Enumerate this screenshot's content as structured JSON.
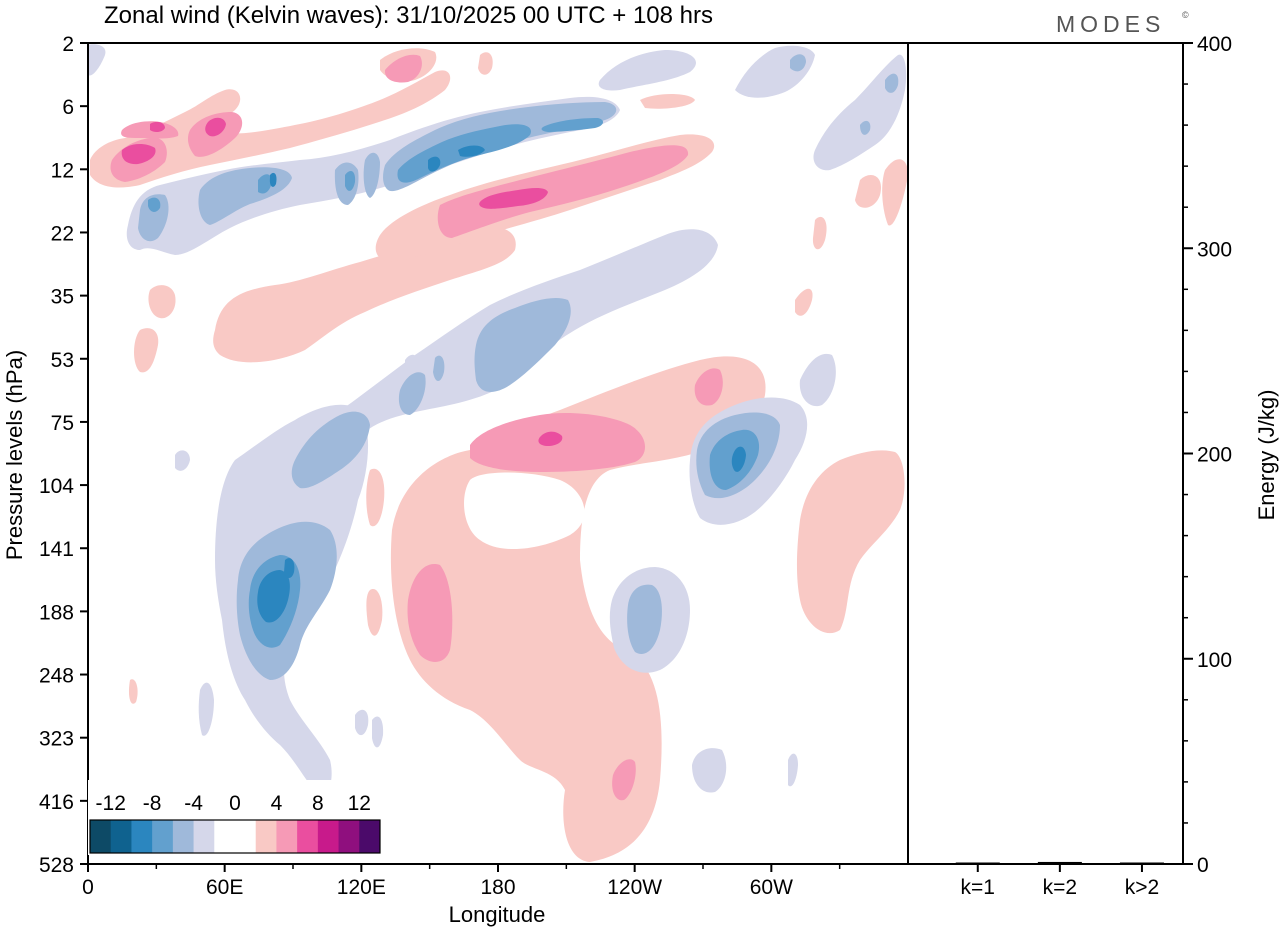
{
  "brand": "MODES",
  "brand_mark": "©",
  "chart_data": [
    {
      "type": "heatmap",
      "title": "Zonal wind (Kelvin waves):  31/10/2025  00 UTC  + 108 hrs",
      "xlabel": "Longitude",
      "ylabel": "Pressure levels (hPa)",
      "x_ticks": [
        "0",
        "60E",
        "120E",
        "180",
        "120W",
        "60W"
      ],
      "x_tick_values": [
        0,
        60,
        120,
        180,
        240,
        300
      ],
      "x_range": [
        0,
        360
      ],
      "y_ticks": [
        "2",
        "6",
        "12",
        "22",
        "35",
        "53",
        "75",
        "104",
        "141",
        "188",
        "248",
        "323",
        "416",
        "528"
      ],
      "y_axis_order": "top-to-bottom",
      "colorbar": {
        "labels": [
          "-12",
          "-8",
          "-4",
          "0",
          "4",
          "8",
          "12"
        ],
        "bins": [
          {
            "range": "<-12",
            "color": "#0d4a66"
          },
          {
            "range": "-12..-10",
            "color": "#0f628f"
          },
          {
            "range": "-10..-8",
            "color": "#2b86bf"
          },
          {
            "range": "-8..-6",
            "color": "#62a0ce"
          },
          {
            "range": "-6..-4",
            "color": "#9fb9da"
          },
          {
            "range": "-4..-2",
            "color": "#d5d7ea"
          },
          {
            "range": "-2..0",
            "color": "#ffffff"
          },
          {
            "range": "0..2",
            "color": "#ffffff"
          },
          {
            "range": "2..4",
            "color": "#f9c9c5"
          },
          {
            "range": "4..6",
            "color": "#f69ab6"
          },
          {
            "range": "6..8",
            "color": "#ea4e9f"
          },
          {
            "range": "8..10",
            "color": "#c81a8b"
          },
          {
            "range": "10..12",
            "color": "#8f0f7e"
          },
          {
            "range": ">12",
            "color": "#4b0a6a"
          }
        ]
      },
      "features": [
        {
          "sign": "negative",
          "peak_value": -10,
          "lon": 72,
          "lat_level_hPa": 175,
          "label": "lower trop negative cell"
        },
        {
          "sign": "negative",
          "peak_value": -10,
          "lon": 280,
          "lat_level_hPa": 100,
          "label": "upper trop negative cell"
        },
        {
          "sign": "negative",
          "peak_value": -10,
          "lon": 150,
          "lat_level_hPa": 12,
          "label": "stratospheric negative band"
        },
        {
          "sign": "positive",
          "peak_value": 6,
          "lon": 140,
          "lat_level_hPa": 180,
          "label": "lower trop positive cell"
        },
        {
          "sign": "positive",
          "peak_value": 8,
          "lon": 200,
          "lat_level_hPa": 85,
          "label": "upper trop positive cell"
        },
        {
          "sign": "positive",
          "peak_value": 8,
          "lon": 190,
          "lat_level_hPa": 16,
          "label": "stratospheric positive band"
        },
        {
          "sign": "positive",
          "peak_value": 8,
          "lon": 20,
          "lat_level_hPa": 11,
          "label": "western positive cell"
        }
      ]
    },
    {
      "type": "bar",
      "ylabel": "Energy (J/kg)",
      "categories": [
        "k=1",
        "k=2",
        "k>2"
      ],
      "values": [
        0.5,
        1,
        0.5
      ],
      "ylim": [
        0,
        400
      ],
      "y_ticks": [
        "0",
        "100",
        "200",
        "300",
        "400"
      ]
    }
  ]
}
